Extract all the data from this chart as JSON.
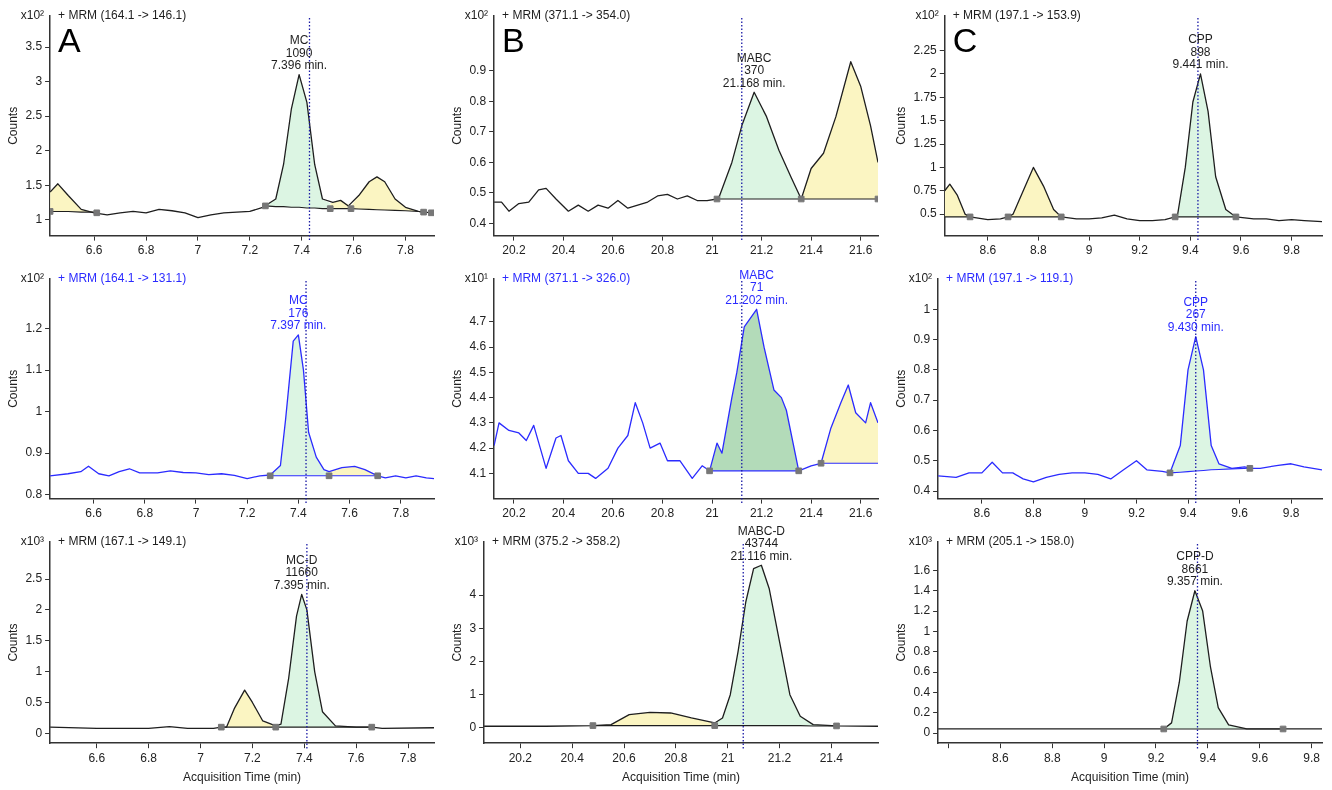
{
  "chart_data": [
    {
      "type": "line",
      "title": "+ MRM (164.1 -> 146.1)",
      "subtitle": "x10²",
      "ylabel": "Counts",
      "annotations": [
        "A",
        {
          "text": "MC\n1090\n7.396 min.",
          "x": 7.39,
          "y": 3.1
        }
      ],
      "xlim": [
        6.43,
        7.91
      ],
      "ylim": [
        0.77,
        3.95
      ],
      "xticks": [
        6.6,
        6.8,
        7,
        7.2,
        7.4,
        7.6,
        7.8
      ],
      "yticks": [
        1,
        1.5,
        2,
        2.5,
        3,
        3.5
      ],
      "ref_lines": [
        {
          "axis": "x",
          "value": 7.43,
          "color": "#1a1aa6",
          "line_style": "dotted"
        }
      ],
      "series": [
        {
          "color": "#1e1e1e",
          "x": [
            6.43,
            6.46,
            6.5,
            6.55,
            6.6,
            6.65,
            6.7,
            6.75,
            6.8,
            6.85,
            6.9,
            6.95,
            7.0,
            7.05,
            7.1,
            7.15,
            7.2,
            7.25,
            7.3,
            7.33,
            7.36,
            7.39,
            7.42,
            7.45,
            7.48,
            7.52,
            7.55,
            7.58,
            7.62,
            7.66,
            7.69,
            7.72,
            7.76,
            7.8,
            7.85,
            7.9
          ],
          "values": [
            1.4,
            1.52,
            1.35,
            1.15,
            1.1,
            1.07,
            1.1,
            1.12,
            1.1,
            1.15,
            1.13,
            1.1,
            1.03,
            1.07,
            1.1,
            1.11,
            1.12,
            1.18,
            1.3,
            1.8,
            2.6,
            3.1,
            2.7,
            1.8,
            1.3,
            1.25,
            1.28,
            1.2,
            1.35,
            1.55,
            1.62,
            1.55,
            1.3,
            1.18,
            1.12,
            1.1
          ]
        },
        {
          "type": "line",
          "color": "#1e1e1e",
          "x": [
            6.43,
            6.46,
            6.5,
            6.55,
            6.6
          ],
          "values": [
            1.12,
            1.12,
            1.12,
            1.11,
            1.11
          ]
        },
        {
          "type": "area",
          "color": "#fbf5c2",
          "x": [
            6.43,
            6.46,
            6.5,
            6.55,
            6.6
          ],
          "values": [
            1.4,
            1.52,
            1.35,
            1.15,
            1.11
          ]
        },
        {
          "type": "line",
          "color": "#1e1e1e",
          "x": [
            7.26,
            7.3,
            7.33,
            7.36,
            7.39,
            7.42,
            7.45,
            7.48,
            7.51
          ],
          "values": [
            1.2,
            1.19,
            1.19,
            1.18,
            1.18,
            1.17,
            1.17,
            1.16,
            1.16
          ]
        },
        {
          "type": "area",
          "color": "#dcf5e3",
          "x": [
            7.26,
            7.3,
            7.33,
            7.36,
            7.39,
            7.42,
            7.45,
            7.48,
            7.51
          ],
          "values": [
            1.2,
            1.3,
            1.8,
            2.6,
            3.1,
            2.7,
            1.8,
            1.3,
            1.24
          ]
        },
        {
          "type": "line",
          "color": "#1e1e1e",
          "x": [
            7.51,
            7.55,
            7.59
          ],
          "values": [
            1.16,
            1.16,
            1.16
          ]
        },
        {
          "type": "area",
          "color": "#fbf5c2",
          "x": [
            7.51,
            7.55,
            7.59
          ],
          "values": [
            1.24,
            1.28,
            1.2
          ]
        },
        {
          "type": "line",
          "color": "#1e1e1e",
          "x": [
            7.59,
            7.62,
            7.66,
            7.69,
            7.72,
            7.76,
            7.8,
            7.85,
            7.87
          ],
          "values": [
            1.16,
            1.155,
            1.15,
            1.145,
            1.14,
            1.135,
            1.13,
            1.12,
            1.11
          ]
        },
        {
          "type": "area",
          "color": "#fbf5c2",
          "x": [
            7.59,
            7.62,
            7.66,
            7.69,
            7.72,
            7.76,
            7.8,
            7.85,
            7.87
          ],
          "values": [
            1.2,
            1.35,
            1.55,
            1.62,
            1.55,
            1.3,
            1.18,
            1.12,
            1.11
          ]
        },
        {
          "type": "scatter",
          "marker": "square",
          "color": "#777777",
          "x": [
            6.43,
            6.61,
            7.26,
            7.51,
            7.59,
            7.87,
            7.9
          ],
          "values": [
            1.12,
            1.1,
            1.2,
            1.16,
            1.16,
            1.11,
            1.1
          ]
        }
      ]
    },
    {
      "type": "line",
      "title": "+ MRM (371.1 -> 354.0)",
      "subtitle": "x10²",
      "ylabel": "Counts",
      "annotations": [
        "B",
        {
          "text": "MABC\n370\n21.168 min.",
          "x": 21.17,
          "y": 0.83
        }
      ],
      "xlim": [
        20.12,
        21.67
      ],
      "ylim": [
        0.36,
        1.08
      ],
      "xticks": [
        20.2,
        20.4,
        20.6,
        20.8,
        21,
        21.2,
        21.4,
        21.6
      ],
      "yticks": [
        0.4,
        0.5,
        0.6,
        0.7,
        0.8,
        0.9
      ],
      "ref_lines": [
        {
          "axis": "x",
          "value": 21.12,
          "color": "#1a1aa6",
          "line_style": "dotted"
        }
      ],
      "series": [
        {
          "color": "#1e1e1e",
          "x": [
            20.12,
            20.15,
            20.18,
            20.22,
            20.26,
            20.3,
            20.33,
            20.37,
            20.42,
            20.46,
            20.5,
            20.54,
            20.58,
            20.62,
            20.66,
            20.7,
            20.74,
            20.78,
            20.82,
            20.86,
            20.9,
            20.94,
            20.98,
            21.02,
            21.03,
            21.08,
            21.12,
            21.17,
            21.22,
            21.27,
            21.32,
            21.36,
            21.4,
            21.45,
            21.5,
            21.56,
            21.6,
            21.64,
            21.67
          ],
          "values": [
            0.47,
            0.47,
            0.44,
            0.465,
            0.47,
            0.51,
            0.515,
            0.48,
            0.44,
            0.46,
            0.44,
            0.46,
            0.45,
            0.475,
            0.45,
            0.46,
            0.47,
            0.49,
            0.495,
            0.48,
            0.49,
            0.475,
            0.475,
            0.48,
            0.49,
            0.6,
            0.72,
            0.83,
            0.75,
            0.64,
            0.55,
            0.48,
            0.58,
            0.63,
            0.75,
            0.93,
            0.85,
            0.72,
            0.6
          ]
        },
        {
          "type": "line",
          "color": "#1e1e1e",
          "x": [
            21.02,
            21.03,
            21.08,
            21.12,
            21.17,
            21.22,
            21.27,
            21.32,
            21.36
          ],
          "values": [
            0.48,
            0.48,
            0.48,
            0.48,
            0.48,
            0.48,
            0.48,
            0.48,
            0.48
          ]
        },
        {
          "type": "area",
          "color": "#dcf5e3",
          "x": [
            21.02,
            21.03,
            21.08,
            21.12,
            21.17,
            21.22,
            21.27,
            21.32,
            21.36
          ],
          "values": [
            0.48,
            0.49,
            0.6,
            0.72,
            0.83,
            0.75,
            0.64,
            0.55,
            0.48
          ]
        },
        {
          "type": "line",
          "color": "#1e1e1e",
          "x": [
            21.36,
            21.4,
            21.45,
            21.5,
            21.56,
            21.6,
            21.64,
            21.67
          ],
          "values": [
            0.48,
            0.48,
            0.48,
            0.48,
            0.48,
            0.48,
            0.48,
            0.48
          ]
        },
        {
          "type": "area",
          "color": "#fbf5c2",
          "x": [
            21.36,
            21.4,
            21.45,
            21.5,
            21.56,
            21.6,
            21.64,
            21.67
          ],
          "values": [
            0.48,
            0.58,
            0.63,
            0.75,
            0.93,
            0.85,
            0.72,
            0.6
          ]
        },
        {
          "type": "scatter",
          "marker": "square",
          "color": "#777777",
          "x": [
            21.02,
            21.36,
            21.67
          ],
          "values": [
            0.48,
            0.48,
            0.48
          ]
        }
      ]
    },
    {
      "type": "line",
      "title": "+ MRM (197.1 -> 153.9)",
      "subtitle": "x10²",
      "ylabel": "Counts",
      "annotations": [
        "C",
        {
          "text": "CPP\n898\n9.441 min.",
          "x": 9.44,
          "y": 2.0
        }
      ],
      "xlim": [
        8.43,
        9.92
      ],
      "ylim": [
        0.27,
        2.62
      ],
      "xticks": [
        8.6,
        8.8,
        9,
        9.2,
        9.4,
        9.6,
        9.8
      ],
      "yticks": [
        0.5,
        0.75,
        1,
        1.25,
        1.5,
        1.75,
        2,
        2.25
      ],
      "ref_lines": [
        {
          "axis": "x",
          "value": 9.43,
          "color": "#1a1aa6",
          "line_style": "dotted"
        }
      ],
      "series": [
        {
          "color": "#1e1e1e",
          "x": [
            8.43,
            8.45,
            8.48,
            8.51,
            8.53,
            8.6,
            8.65,
            8.68,
            8.7,
            8.74,
            8.78,
            8.82,
            8.86,
            8.89,
            8.95,
            9.0,
            9.05,
            9.1,
            9.15,
            9.2,
            9.25,
            9.3,
            9.34,
            9.35,
            9.38,
            9.41,
            9.44,
            9.47,
            9.5,
            9.54,
            9.58,
            9.65,
            9.7,
            9.75,
            9.8,
            9.85,
            9.92
          ],
          "values": [
            0.75,
            0.82,
            0.7,
            0.5,
            0.47,
            0.44,
            0.45,
            0.47,
            0.5,
            0.75,
            1.0,
            0.8,
            0.55,
            0.47,
            0.45,
            0.45,
            0.46,
            0.49,
            0.45,
            0.43,
            0.43,
            0.44,
            0.47,
            0.5,
            1.0,
            1.7,
            2.0,
            1.6,
            0.9,
            0.55,
            0.47,
            0.45,
            0.45,
            0.43,
            0.44,
            0.43,
            0.42
          ]
        },
        {
          "type": "line",
          "color": "#1e1e1e",
          "x": [
            8.43,
            8.45,
            8.48,
            8.51,
            8.53
          ],
          "values": [
            0.47,
            0.47,
            0.47,
            0.47,
            0.47
          ]
        },
        {
          "type": "area",
          "color": "#fbf5c2",
          "x": [
            8.43,
            8.45,
            8.48,
            8.51,
            8.53
          ],
          "values": [
            0.75,
            0.82,
            0.7,
            0.5,
            0.47
          ]
        },
        {
          "type": "line",
          "color": "#1e1e1e",
          "x": [
            8.68,
            8.7,
            8.74,
            8.78,
            8.82,
            8.86,
            8.89
          ],
          "values": [
            0.47,
            0.47,
            0.47,
            0.47,
            0.47,
            0.47,
            0.47
          ]
        },
        {
          "type": "area",
          "color": "#fbf5c2",
          "x": [
            8.68,
            8.7,
            8.74,
            8.78,
            8.82,
            8.86,
            8.89
          ],
          "values": [
            0.47,
            0.5,
            0.75,
            1.0,
            0.8,
            0.55,
            0.47
          ]
        },
        {
          "type": "line",
          "color": "#1e1e1e",
          "x": [
            9.34,
            9.35,
            9.38,
            9.41,
            9.44,
            9.47,
            9.5,
            9.54,
            9.58
          ],
          "values": [
            0.47,
            0.47,
            0.47,
            0.47,
            0.47,
            0.47,
            0.47,
            0.47,
            0.47
          ]
        },
        {
          "type": "area",
          "color": "#dcf5e3",
          "x": [
            9.34,
            9.35,
            9.38,
            9.41,
            9.44,
            9.47,
            9.5,
            9.54,
            9.58
          ],
          "values": [
            0.47,
            0.5,
            1.0,
            1.7,
            2.0,
            1.6,
            0.9,
            0.55,
            0.47
          ]
        },
        {
          "type": "scatter",
          "marker": "square",
          "color": "#777777",
          "x": [
            8.53,
            8.68,
            8.89,
            9.34,
            9.58
          ],
          "values": [
            0.47,
            0.47,
            0.47,
            0.47,
            0.47
          ]
        }
      ]
    },
    {
      "type": "line",
      "title": "+ MRM (164.1 -> 131.1)",
      "subtitle": "x10²",
      "ylabel": "Counts",
      "annotations": [
        {
          "text": "MC\n176\n7.397 min.",
          "x": 7.4,
          "y": 1.185
        }
      ],
      "xlim": [
        6.43,
        7.93
      ],
      "ylim": [
        0.79,
        1.32
      ],
      "xticks": [
        6.6,
        6.8,
        7,
        7.2,
        7.4,
        7.6,
        7.8
      ],
      "yticks": [
        0.8,
        0.9,
        1,
        1.1,
        1.2
      ],
      "ref_lines": [
        {
          "axis": "x",
          "value": 7.43,
          "color": "#1a1aa6",
          "line_style": "dotted"
        }
      ],
      "series": [
        {
          "color": "#2b2bff",
          "x": [
            6.43,
            6.5,
            6.55,
            6.58,
            6.62,
            6.66,
            6.7,
            6.74,
            6.78,
            6.85,
            6.9,
            6.95,
            7.0,
            7.05,
            7.1,
            7.15,
            7.2,
            7.25,
            7.29,
            7.33,
            7.35,
            7.38,
            7.4,
            7.42,
            7.44,
            7.47,
            7.5,
            7.52,
            7.57,
            7.62,
            7.66,
            7.71,
            7.74,
            7.78,
            7.82,
            7.86,
            7.9,
            7.93
          ],
          "values": [
            0.845,
            0.85,
            0.855,
            0.868,
            0.85,
            0.845,
            0.855,
            0.862,
            0.852,
            0.852,
            0.857,
            0.853,
            0.852,
            0.848,
            0.85,
            0.846,
            0.838,
            0.845,
            0.847,
            0.87,
            0.98,
            1.17,
            1.185,
            1.1,
            0.95,
            0.89,
            0.86,
            0.855,
            0.865,
            0.868,
            0.86,
            0.845,
            0.84,
            0.845,
            0.84,
            0.845,
            0.84,
            0.838
          ]
        },
        {
          "type": "line",
          "color": "#2b2bff",
          "x": [
            7.29,
            7.33,
            7.35,
            7.38,
            7.4,
            7.42,
            7.44,
            7.47,
            7.5,
            7.52
          ],
          "values": [
            0.845,
            0.845,
            0.845,
            0.845,
            0.845,
            0.845,
            0.845,
            0.845,
            0.845,
            0.845
          ]
        },
        {
          "type": "area",
          "color": "#dcf5e3",
          "x": [
            7.29,
            7.33,
            7.35,
            7.38,
            7.4,
            7.42,
            7.44,
            7.47,
            7.5,
            7.52
          ],
          "values": [
            0.847,
            0.87,
            0.98,
            1.17,
            1.185,
            1.1,
            0.95,
            0.89,
            0.86,
            0.855
          ]
        },
        {
          "type": "line",
          "color": "#2b2bff",
          "x": [
            7.52,
            7.57,
            7.62,
            7.66,
            7.71
          ],
          "values": [
            0.845,
            0.845,
            0.845,
            0.845,
            0.845
          ]
        },
        {
          "type": "area",
          "color": "#fbf5c2",
          "x": [
            7.52,
            7.57,
            7.62,
            7.66,
            7.71
          ],
          "values": [
            0.855,
            0.865,
            0.868,
            0.86,
            0.845
          ]
        },
        {
          "type": "scatter",
          "marker": "square",
          "color": "#777777",
          "x": [
            7.29,
            7.52,
            7.71
          ],
          "values": [
            0.845,
            0.845,
            0.845
          ]
        }
      ]
    },
    {
      "type": "line",
      "title": "+ MRM (371.1 -> 326.0)",
      "subtitle": "x10¹",
      "ylabel": "Counts",
      "annotations": [
        {
          "text": "MABC\n71\n21.202 min.",
          "x": 21.18,
          "y": 4.75
        }
      ],
      "xlim": [
        20.12,
        21.67
      ],
      "ylim": [
        4.0,
        4.87
      ],
      "xticks": [
        20.2,
        20.4,
        20.6,
        20.8,
        21,
        21.2,
        21.4,
        21.6
      ],
      "yticks": [
        4.1,
        4.2,
        4.3,
        4.4,
        4.5,
        4.6,
        4.7
      ],
      "ref_lines": [
        {
          "axis": "x",
          "value": 21.12,
          "color": "#1a1aa6",
          "line_style": "dotted"
        }
      ],
      "series": [
        {
          "color": "#2b2bff",
          "x": [
            20.12,
            20.14,
            20.18,
            20.22,
            20.25,
            20.28,
            20.33,
            20.37,
            20.39,
            20.42,
            20.46,
            20.5,
            20.53,
            20.58,
            20.62,
            20.66,
            20.69,
            20.72,
            20.75,
            20.79,
            20.82,
            20.87,
            20.92,
            20.96,
            20.99,
            21.02,
            21.04,
            21.08,
            21.1,
            21.13,
            21.18,
            21.21,
            21.25,
            21.28,
            21.3,
            21.35,
            21.4,
            21.44,
            21.48,
            21.52,
            21.55,
            21.58,
            21.62,
            21.64,
            21.67
          ],
          "values": [
            4.21,
            4.3,
            4.27,
            4.26,
            4.23,
            4.29,
            4.12,
            4.24,
            4.25,
            4.15,
            4.1,
            4.1,
            4.08,
            4.12,
            4.2,
            4.25,
            4.38,
            4.3,
            4.2,
            4.22,
            4.15,
            4.15,
            4.08,
            4.13,
            4.11,
            4.22,
            4.18,
            4.4,
            4.5,
            4.68,
            4.75,
            4.6,
            4.43,
            4.4,
            4.35,
            4.11,
            4.13,
            4.14,
            4.28,
            4.38,
            4.45,
            4.34,
            4.3,
            4.38,
            4.3
          ]
        },
        {
          "type": "line",
          "color": "#2b2bff",
          "x": [
            20.99,
            21.02,
            21.04,
            21.08,
            21.1,
            21.13,
            21.18,
            21.21,
            21.25,
            21.28,
            21.3,
            21.35
          ],
          "values": [
            4.11,
            4.11,
            4.11,
            4.11,
            4.11,
            4.11,
            4.11,
            4.11,
            4.11,
            4.11,
            4.11,
            4.11
          ]
        },
        {
          "type": "area",
          "color": "#b3dbb9",
          "x": [
            20.99,
            21.02,
            21.04,
            21.08,
            21.1,
            21.13,
            21.18,
            21.21,
            21.25,
            21.28,
            21.3,
            21.35
          ],
          "values": [
            4.11,
            4.22,
            4.18,
            4.4,
            4.5,
            4.68,
            4.75,
            4.6,
            4.43,
            4.4,
            4.35,
            4.11
          ]
        },
        {
          "type": "line",
          "color": "#2b2bff",
          "x": [
            21.44,
            21.48,
            21.52,
            21.55,
            21.58,
            21.62,
            21.64,
            21.67
          ],
          "values": [
            4.14,
            4.14,
            4.14,
            4.14,
            4.14,
            4.14,
            4.14,
            4.14
          ]
        },
        {
          "type": "area",
          "color": "#fbf5c2",
          "x": [
            21.44,
            21.48,
            21.52,
            21.55,
            21.58,
            21.62,
            21.64,
            21.67
          ],
          "values": [
            4.14,
            4.28,
            4.38,
            4.45,
            4.34,
            4.3,
            4.38,
            4.3
          ]
        },
        {
          "type": "scatter",
          "marker": "square",
          "color": "#777777",
          "x": [
            20.99,
            21.35,
            21.44
          ],
          "values": [
            4.11,
            4.11,
            4.14
          ]
        }
      ]
    },
    {
      "type": "line",
      "title": "+ MRM (197.1 -> 119.1)",
      "subtitle": "x10²",
      "ylabel": "Counts",
      "annotations": [
        {
          "text": "CPP\n267\n9.430 min.",
          "x": 9.43,
          "y": 0.91
        }
      ],
      "xlim": [
        8.43,
        9.92
      ],
      "ylim": [
        0.375,
        1.1
      ],
      "xticks": [
        8.6,
        8.8,
        9,
        9.2,
        9.4,
        9.6,
        9.8
      ],
      "yticks": [
        0.4,
        0.5,
        0.6,
        0.7,
        0.8,
        0.9,
        1
      ],
      "ref_lines": [
        {
          "axis": "x",
          "value": 9.43,
          "color": "#1a1aa6",
          "line_style": "dotted"
        }
      ],
      "series": [
        {
          "color": "#2b2bff",
          "x": [
            8.43,
            8.5,
            8.55,
            8.6,
            8.64,
            8.68,
            8.72,
            8.76,
            8.8,
            8.85,
            8.9,
            8.95,
            9.0,
            9.05,
            9.1,
            9.15,
            9.2,
            9.24,
            9.3,
            9.33,
            9.37,
            9.4,
            9.43,
            9.46,
            9.49,
            9.52,
            9.57,
            9.62,
            9.64,
            9.68,
            9.75,
            9.8,
            9.85,
            9.92
          ],
          "values": [
            0.45,
            0.445,
            0.46,
            0.46,
            0.495,
            0.46,
            0.46,
            0.44,
            0.43,
            0.445,
            0.455,
            0.46,
            0.46,
            0.455,
            0.44,
            0.47,
            0.5,
            0.47,
            0.465,
            0.46,
            0.55,
            0.8,
            0.91,
            0.8,
            0.55,
            0.49,
            0.475,
            0.48,
            0.475,
            0.475,
            0.485,
            0.49,
            0.48,
            0.47
          ]
        },
        {
          "type": "line",
          "color": "#2b2bff",
          "x": [
            9.33,
            9.37,
            9.4,
            9.43,
            9.46,
            9.49,
            9.52,
            9.57,
            9.64
          ],
          "values": [
            0.46,
            0.462,
            0.464,
            0.466,
            0.468,
            0.47,
            0.471,
            0.473,
            0.475
          ]
        },
        {
          "type": "area",
          "color": "#dcf5e3",
          "x": [
            9.33,
            9.37,
            9.4,
            9.43,
            9.46,
            9.49,
            9.52,
            9.57,
            9.64
          ],
          "values": [
            0.46,
            0.55,
            0.8,
            0.91,
            0.8,
            0.55,
            0.49,
            0.475,
            0.475
          ]
        },
        {
          "type": "scatter",
          "marker": "square",
          "color": "#777777",
          "x": [
            9.33,
            9.64
          ],
          "values": [
            0.46,
            0.475
          ]
        }
      ]
    },
    {
      "type": "line",
      "title": "+ MRM (167.1 -> 149.1)",
      "subtitle": "x10³",
      "ylabel": "Counts",
      "xlabel": "Acquisition Time (min)",
      "annotations": [
        {
          "text": "MC-D\n11660\n7.395 min.",
          "x": 7.39,
          "y": 2.25
        }
      ],
      "xlim": [
        6.42,
        7.9
      ],
      "ylim": [
        -0.16,
        3.1
      ],
      "xticks": [
        6.6,
        6.8,
        7,
        7.2,
        7.4,
        7.6,
        7.8
      ],
      "yticks": [
        0,
        0.5,
        1,
        1.5,
        2,
        2.5
      ],
      "ref_lines": [
        {
          "axis": "x",
          "value": 7.41,
          "color": "#1a1aa6",
          "line_style": "dotted"
        }
      ],
      "series": [
        {
          "color": "#1e1e1e",
          "x": [
            6.42,
            6.6,
            6.8,
            6.88,
            6.95,
            7.05,
            7.08,
            7.1,
            7.13,
            7.17,
            7.2,
            7.24,
            7.29,
            7.31,
            7.34,
            7.37,
            7.39,
            7.41,
            7.44,
            7.47,
            7.52,
            7.6,
            7.66,
            7.7,
            7.9
          ],
          "values": [
            0.1,
            0.08,
            0.08,
            0.11,
            0.08,
            0.08,
            0.1,
            0.1,
            0.4,
            0.7,
            0.5,
            0.2,
            0.12,
            0.15,
            0.9,
            1.9,
            2.25,
            2.0,
            1.0,
            0.35,
            0.12,
            0.1,
            0.1,
            0.08,
            0.09
          ]
        },
        {
          "type": "line",
          "color": "#1e1e1e",
          "x": [
            7.08,
            7.1,
            7.13,
            7.17,
            7.2,
            7.24,
            7.29
          ],
          "values": [
            0.1,
            0.1,
            0.1,
            0.1,
            0.1,
            0.1,
            0.1
          ]
        },
        {
          "type": "area",
          "color": "#fbf5c2",
          "x": [
            7.08,
            7.1,
            7.13,
            7.17,
            7.2,
            7.24,
            7.29
          ],
          "values": [
            0.1,
            0.1,
            0.4,
            0.7,
            0.5,
            0.2,
            0.12
          ]
        },
        {
          "type": "line",
          "color": "#1e1e1e",
          "x": [
            7.29,
            7.31,
            7.34,
            7.37,
            7.39,
            7.41,
            7.44,
            7.47,
            7.52,
            7.6,
            7.66
          ],
          "values": [
            0.1,
            0.1,
            0.1,
            0.1,
            0.1,
            0.1,
            0.1,
            0.1,
            0.1,
            0.1,
            0.1
          ]
        },
        {
          "type": "area",
          "color": "#dcf5e3",
          "x": [
            7.29,
            7.31,
            7.34,
            7.37,
            7.39,
            7.41,
            7.44,
            7.47,
            7.52,
            7.6,
            7.66
          ],
          "values": [
            0.12,
            0.15,
            0.9,
            1.9,
            2.25,
            2.0,
            1.0,
            0.35,
            0.12,
            0.1,
            0.1
          ]
        },
        {
          "type": "scatter",
          "marker": "square",
          "color": "#777777",
          "x": [
            7.08,
            7.29,
            7.66
          ],
          "values": [
            0.1,
            0.1,
            0.1
          ]
        }
      ]
    },
    {
      "type": "line",
      "title": "+ MRM (375.2 -> 358.2)",
      "subtitle": "x10³",
      "ylabel": "Counts",
      "xlabel": "Acquisition Time (min)",
      "annotations": [
        {
          "text": "MABC-D\n43744\n21.116 min.",
          "x": 21.13,
          "y": 4.9
        }
      ],
      "xlim": [
        20.06,
        21.58
      ],
      "ylim": [
        -0.46,
        5.6
      ],
      "xticks": [
        20.2,
        20.4,
        20.6,
        20.8,
        21,
        21.2,
        21.4
      ],
      "yticks": [
        0,
        1,
        2,
        3,
        4
      ],
      "ref_lines": [
        {
          "axis": "x",
          "value": 21.06,
          "color": "#1a1aa6",
          "line_style": "dotted"
        }
      ],
      "series": [
        {
          "color": "#1e1e1e",
          "x": [
            20.06,
            20.3,
            20.48,
            20.55,
            20.62,
            20.7,
            20.78,
            20.86,
            20.95,
            20.98,
            21.01,
            21.04,
            21.07,
            21.1,
            21.13,
            21.16,
            21.2,
            21.24,
            21.28,
            21.33,
            21.42,
            21.58
          ],
          "values": [
            0.05,
            0.05,
            0.07,
            0.1,
            0.4,
            0.47,
            0.45,
            0.3,
            0.15,
            0.3,
            1.0,
            2.3,
            3.8,
            4.8,
            4.9,
            4.2,
            2.6,
            1.0,
            0.35,
            0.1,
            0.06,
            0.05
          ]
        },
        {
          "type": "line",
          "color": "#1e1e1e",
          "x": [
            20.48,
            20.55,
            20.62,
            20.7,
            20.78,
            20.86,
            20.95
          ],
          "values": [
            0.07,
            0.07,
            0.07,
            0.07,
            0.07,
            0.07,
            0.07
          ]
        },
        {
          "type": "area",
          "color": "#fbf5c2",
          "x": [
            20.48,
            20.55,
            20.62,
            20.7,
            20.78,
            20.86,
            20.95
          ],
          "values": [
            0.07,
            0.1,
            0.4,
            0.47,
            0.45,
            0.3,
            0.15
          ]
        },
        {
          "type": "line",
          "color": "#1e1e1e",
          "x": [
            20.95,
            20.98,
            21.01,
            21.04,
            21.07,
            21.1,
            21.13,
            21.16,
            21.2,
            21.24,
            21.28,
            21.33,
            21.42
          ],
          "values": [
            0.07,
            0.07,
            0.07,
            0.07,
            0.07,
            0.07,
            0.07,
            0.07,
            0.07,
            0.07,
            0.07,
            0.06,
            0.06
          ]
        },
        {
          "type": "area",
          "color": "#dcf5e3",
          "x": [
            20.95,
            20.98,
            21.01,
            21.04,
            21.07,
            21.1,
            21.13,
            21.16,
            21.2,
            21.24,
            21.28,
            21.33,
            21.42
          ],
          "values": [
            0.15,
            0.3,
            1.0,
            2.3,
            3.8,
            4.8,
            4.9,
            4.2,
            2.6,
            1.0,
            0.35,
            0.1,
            0.06
          ]
        },
        {
          "type": "scatter",
          "marker": "square",
          "color": "#777777",
          "x": [
            20.48,
            20.95,
            21.42
          ],
          "values": [
            0.07,
            0.07,
            0.06
          ]
        }
      ]
    },
    {
      "type": "line",
      "title": "+ MRM (205.1 -> 158.0)",
      "subtitle": "x10³",
      "ylabel": "Counts",
      "xlabel": "Acquisition Time (min)",
      "annotations": [
        {
          "text": "CPP-D\n8661\n9.357 min.",
          "x": 9.35,
          "y": 1.4
        }
      ],
      "xlim": [
        8.36,
        9.84
      ],
      "ylim": [
        -0.1,
        1.88
      ],
      "xticks": [
        {
          "value": 8.4,
          "label": null
        },
        8.6,
        8.8,
        9,
        9.2,
        9.4,
        9.6,
        9.8
      ],
      "yticks": [
        0,
        0.2,
        0.4,
        0.6,
        0.8,
        1,
        1.2,
        1.4,
        1.6
      ],
      "ref_lines": [
        {
          "axis": "x",
          "value": 9.36,
          "color": "#1a1aa6",
          "line_style": "dotted"
        }
      ],
      "series": [
        {
          "color": "#1e1e1e",
          "x": [
            8.36,
            9.0,
            9.23,
            9.26,
            9.29,
            9.32,
            9.35,
            9.38,
            9.41,
            9.44,
            9.48,
            9.55,
            9.69,
            9.84
          ],
          "values": [
            0.04,
            0.04,
            0.04,
            0.1,
            0.5,
            1.1,
            1.4,
            1.2,
            0.65,
            0.25,
            0.08,
            0.04,
            0.04,
            0.04
          ]
        },
        {
          "type": "line",
          "color": "#1e1e1e",
          "x": [
            9.23,
            9.26,
            9.29,
            9.32,
            9.35,
            9.38,
            9.41,
            9.44,
            9.48,
            9.55,
            9.69
          ],
          "values": [
            0.04,
            0.04,
            0.04,
            0.04,
            0.04,
            0.04,
            0.04,
            0.04,
            0.04,
            0.04,
            0.04
          ]
        },
        {
          "type": "area",
          "color": "#dcf5e3",
          "x": [
            9.23,
            9.26,
            9.29,
            9.32,
            9.35,
            9.38,
            9.41,
            9.44,
            9.48,
            9.55,
            9.69
          ],
          "values": [
            0.04,
            0.1,
            0.5,
            1.1,
            1.4,
            1.2,
            0.65,
            0.25,
            0.08,
            0.04,
            0.04
          ]
        },
        {
          "type": "scatter",
          "marker": "square",
          "color": "#777777",
          "x": [
            9.23,
            9.69
          ],
          "values": [
            0.04,
            0.04
          ]
        }
      ]
    }
  ]
}
